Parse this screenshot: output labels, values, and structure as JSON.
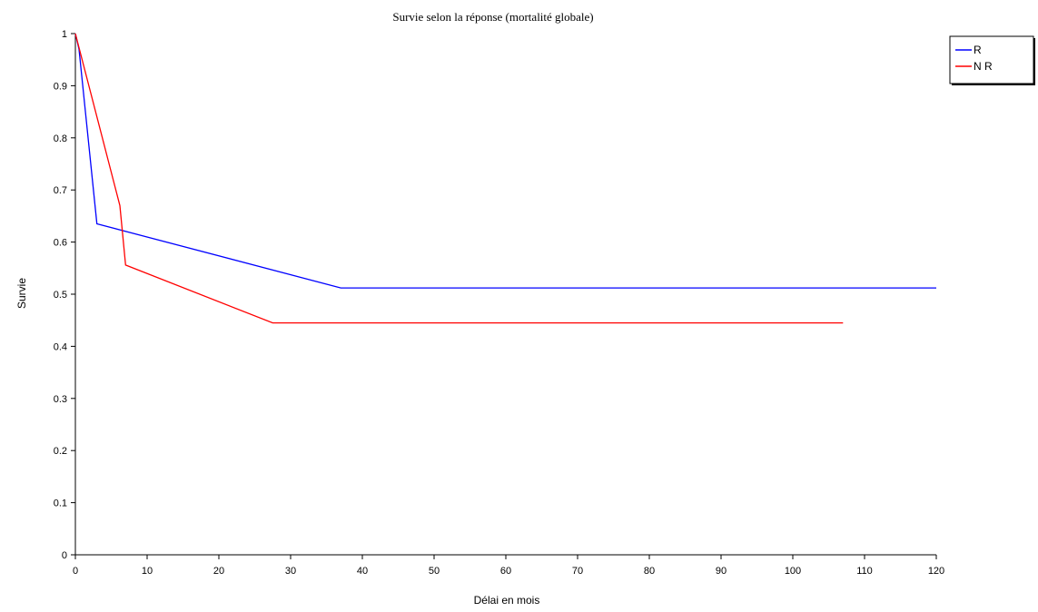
{
  "chart_data": {
    "type": "line",
    "title": "Survie selon la réponse (mortalité globale)",
    "xlabel": "Délai en mois",
    "ylabel": "Survie",
    "xlim": [
      0,
      120
    ],
    "ylim": [
      0,
      1
    ],
    "x_ticks": [
      0,
      10,
      20,
      30,
      40,
      50,
      60,
      70,
      80,
      90,
      100,
      110,
      120
    ],
    "y_ticks": [
      0,
      0.1,
      0.2,
      0.3,
      0.4,
      0.5,
      0.6,
      0.7,
      0.8,
      0.9,
      1
    ],
    "y_tick_labels": [
      "0",
      "0.1",
      "0.2",
      "0.3",
      "0.4",
      "0.5",
      "0.6",
      "0.7",
      "0.8",
      "0.9",
      "1"
    ],
    "grid": false,
    "legend_position": "top-right",
    "series": [
      {
        "name": "R",
        "color": "#0000ff",
        "points": [
          [
            0,
            1.0
          ],
          [
            0.5,
            0.97
          ],
          [
            3,
            0.635
          ],
          [
            37,
            0.512
          ],
          [
            120,
            0.512
          ]
        ]
      },
      {
        "name": "N R",
        "color": "#ff0000",
        "points": [
          [
            0,
            1.0
          ],
          [
            6.2,
            0.67
          ],
          [
            7,
            0.556
          ],
          [
            27.5,
            0.445
          ],
          [
            107,
            0.445
          ]
        ]
      }
    ]
  }
}
